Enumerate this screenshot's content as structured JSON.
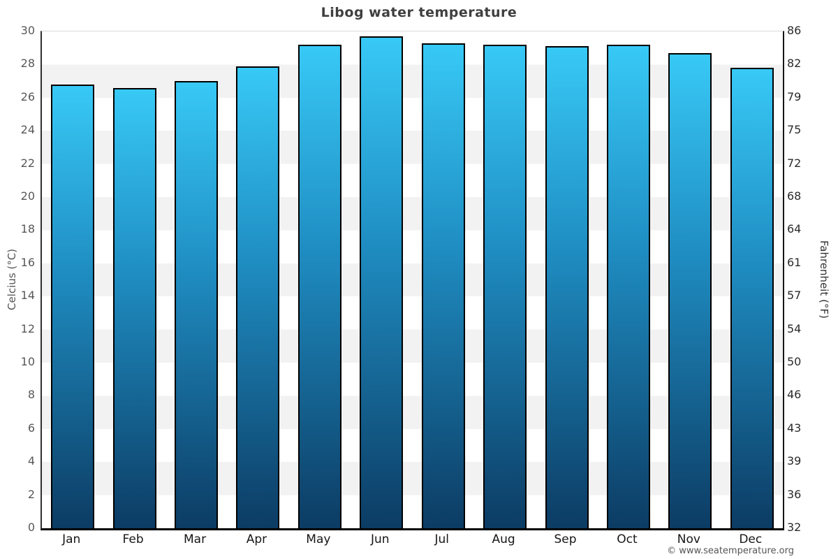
{
  "title": "Libog water temperature",
  "footer": {
    "credit": "© www.seatemperature.org"
  },
  "axes": {
    "left_title": "Celcius (°C)",
    "right_title": "Fahrenheit (°F)"
  },
  "chart_data": {
    "type": "bar",
    "title": "Libog water temperature",
    "categories": [
      "Jan",
      "Feb",
      "Mar",
      "Apr",
      "May",
      "Jun",
      "Jul",
      "Aug",
      "Sep",
      "Oct",
      "Nov",
      "Dec"
    ],
    "series": [
      {
        "name": "Water temperature (°C)",
        "values": [
          26.8,
          26.6,
          27.0,
          27.9,
          29.2,
          29.7,
          29.3,
          29.2,
          29.1,
          29.2,
          28.7,
          27.8
        ]
      }
    ],
    "xlabel": "",
    "ylabel_left": "Celcius (°C)",
    "ylabel_right": "Fahrenheit (°F)",
    "ylim_celsius": [
      0,
      30
    ],
    "celsius_ticks": [
      30,
      28,
      26,
      24,
      22,
      20,
      18,
      16,
      14,
      12,
      10,
      8,
      6,
      4,
      2,
      0
    ],
    "fahrenheit_ticks": [
      86,
      82,
      79,
      75,
      72,
      68,
      64,
      61,
      57,
      54,
      50,
      46,
      43,
      39,
      36,
      32
    ],
    "legend": "none",
    "grid": "alternating 2°C horizontal bands",
    "bar_outline_color": "#000000"
  },
  "colors": {
    "bar_gradient_top": "#38c9f6",
    "bar_gradient_mid": "#1f8dc2",
    "bar_gradient_bottom": "#0c3c64",
    "band_gray": "#f2f2f2",
    "band_white": "#ffffff",
    "title_text": "#3f3f3f",
    "baseline": "#000000"
  }
}
